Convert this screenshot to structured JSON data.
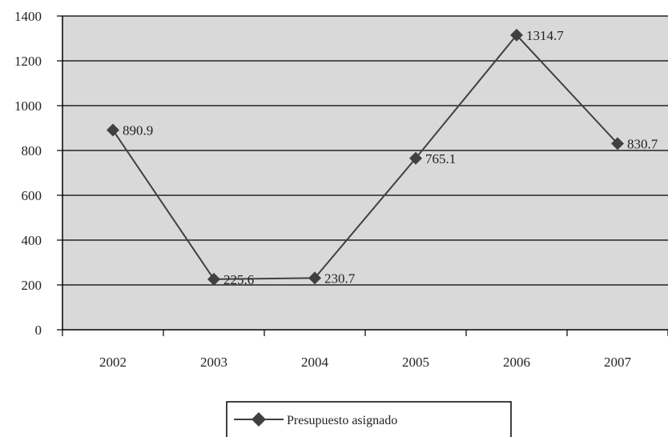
{
  "chart_data": {
    "type": "line",
    "categories": [
      "2002",
      "2003",
      "2004",
      "2005",
      "2006",
      "2007"
    ],
    "series": [
      {
        "name": "Presupuesto asignado",
        "values": [
          890.9,
          225.6,
          230.7,
          765.1,
          1314.7,
          830.7
        ],
        "data_labels": [
          "890.9",
          "225.6",
          "230.7",
          "765.1",
          "1314.7",
          "830.7"
        ]
      }
    ],
    "y_ticks": [
      "0",
      "200",
      "400",
      "600",
      "800",
      "1000",
      "1200",
      "1400"
    ],
    "ylim": [
      0,
      1400
    ],
    "grid": true,
    "legend_position": "bottom",
    "colors": {
      "plot_background": "#d9d9d9",
      "line": "#404040",
      "marker": "#404040",
      "gridline": "#000000"
    }
  }
}
